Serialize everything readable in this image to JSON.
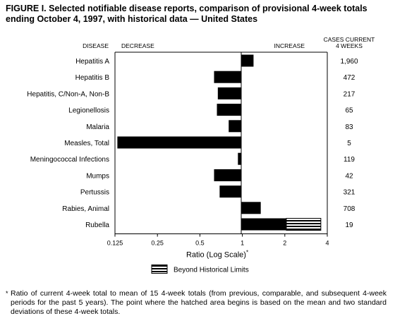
{
  "figure": {
    "title": "FIGURE I. Selected notifiable disease reports, comparison of provisional 4-week totals ending October 4, 1997, with historical data — United States",
    "footnote_marker": "*",
    "footnote": "Ratio of current 4-week total to mean of 15 4-week totals (from previous, comparable, and subsequent 4-week periods for the past 5 years). The point where the hatched area begins is based on the mean and two standard deviations of these 4-week totals."
  },
  "chart_data": {
    "type": "bar",
    "orientation": "horizontal",
    "x_scale": "log2",
    "xlim": [
      0.125,
      4
    ],
    "xticks": [
      "0.125",
      "0.25",
      "0.5",
      "1",
      "2",
      "4"
    ],
    "xlabel": "Ratio (Log Scale)",
    "xlabel_marker": "*",
    "column_headers": {
      "disease": "DISEASE",
      "decrease": "DECREASE",
      "increase": "INCREASE",
      "cases": "CASES CURRENT\n4 WEEKS"
    },
    "legend": {
      "label": "Beyond Historical Limits",
      "position": "bottom-center"
    },
    "categories": [
      "Hepatitis A",
      "Hepatitis B",
      "Hepatitis, C/Non-A, Non-B",
      "Legionellosis",
      "Malaria",
      "Measles, Total",
      "Meningococcal Infections",
      "Mumps",
      "Pertussis",
      "Rabies, Animal",
      "Rubella"
    ],
    "ratios": [
      1.2,
      0.63,
      0.67,
      0.66,
      0.8,
      0.13,
      0.93,
      0.63,
      0.69,
      1.35,
      3.6
    ],
    "beyond_historical_limits_from": [
      null,
      null,
      null,
      null,
      null,
      null,
      null,
      null,
      null,
      null,
      2.05
    ],
    "cases_current_4_weeks": [
      "1,960",
      "472",
      "217",
      "65",
      "83",
      "5",
      "119",
      "42",
      "321",
      "708",
      "19"
    ]
  }
}
